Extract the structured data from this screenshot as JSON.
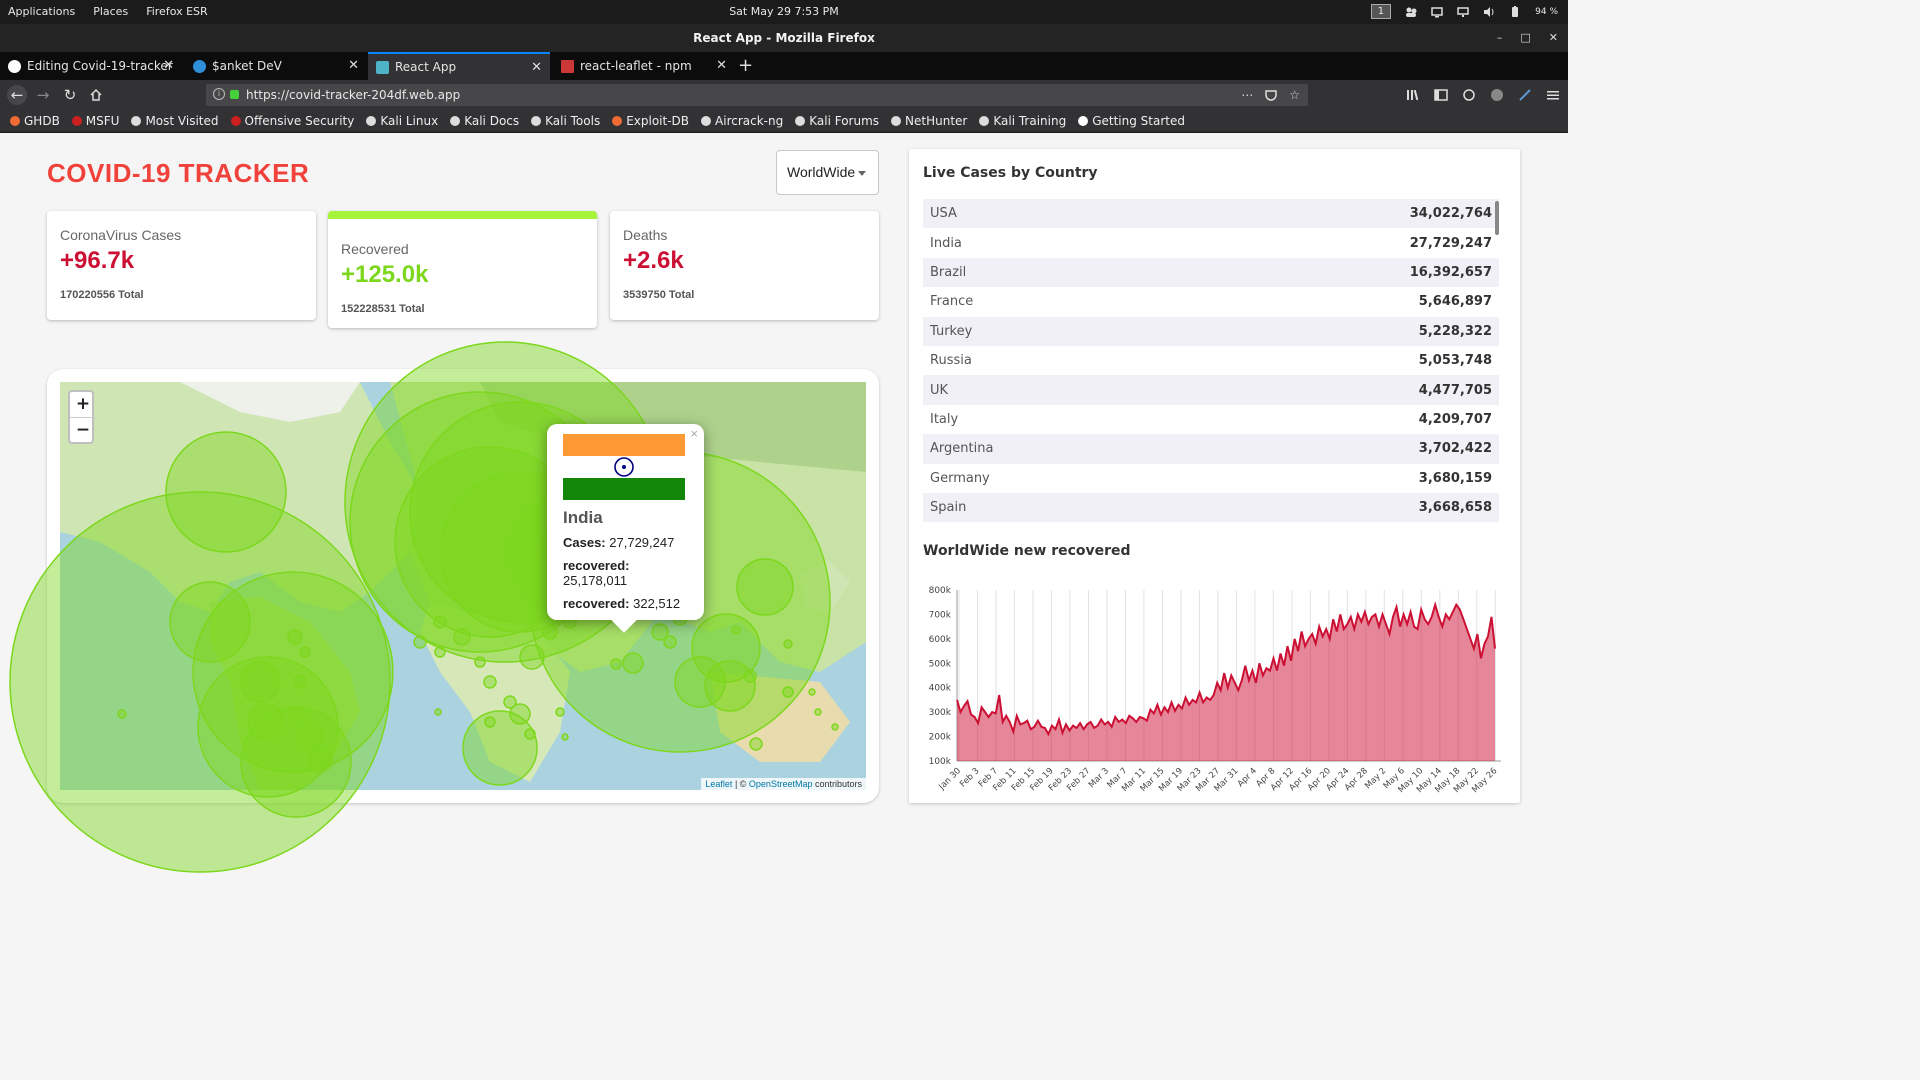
{
  "os": {
    "menus": [
      "Applications",
      "Places",
      "Firefox ESR"
    ],
    "clock": "Sat May 29   7:53 PM",
    "workspace": "1",
    "battery": "94 %"
  },
  "window": {
    "title": "React App - Mozilla Firefox",
    "min": "–",
    "max": "□",
    "close": "✕"
  },
  "tabs": [
    {
      "label": "Editing Covid-19-tracker",
      "fav_color": "#ffffff"
    },
    {
      "label": "$anket DeV",
      "fav_color": "#2f8fd8"
    },
    {
      "label": "React App",
      "fav_color": "#4fb3c8"
    },
    {
      "label": "react-leaflet - npm",
      "fav_color": "#cb3837"
    }
  ],
  "nav": {
    "url": "https://covid-tracker-204df.web.app",
    "url_actions": "⋯"
  },
  "bookmarks": [
    {
      "label": "GHDB",
      "color": "#f06a35"
    },
    {
      "label": "MSFU",
      "color": "#cc1f1f"
    },
    {
      "label": "Most Visited",
      "color": "#dddddd"
    },
    {
      "label": "Offensive Security",
      "color": "#cc1f1f"
    },
    {
      "label": "Kali Linux",
      "color": "#dddddd"
    },
    {
      "label": "Kali Docs",
      "color": "#dddddd"
    },
    {
      "label": "Kali Tools",
      "color": "#dddddd"
    },
    {
      "label": "Exploit-DB",
      "color": "#f06a35"
    },
    {
      "label": "Aircrack-ng",
      "color": "#dddddd"
    },
    {
      "label": "Kali Forums",
      "color": "#dddddd"
    },
    {
      "label": "NetHunter",
      "color": "#dddddd"
    },
    {
      "label": "Kali Training",
      "color": "#dddddd"
    },
    {
      "label": "Getting Started",
      "color": "#ffffff"
    }
  ],
  "app": {
    "title": "COVID-19 TRACKER",
    "select_value": "WorldWide",
    "cards": [
      {
        "title": "CoronaVirus Cases",
        "value": "+96.7k",
        "total": "170220556 Total"
      },
      {
        "title": "Recovered",
        "value": "+125.0k",
        "total": "152228531 Total"
      },
      {
        "title": "Deaths",
        "value": "+2.6k",
        "total": "3539750 Total"
      }
    ],
    "map": {
      "zoom_in": "+",
      "zoom_out": "−",
      "attribution_leaflet": "Leaflet",
      "attribution_sep": " | © ",
      "attribution_osm": "OpenStreetMap",
      "attribution_rest": " contributors",
      "popup": {
        "close": "×",
        "country": "India",
        "cases_label": "Cases:",
        "cases_value": "27,729,247",
        "recovered_label": "recovered:",
        "recovered_value": "25,178,011",
        "recovered2_label": "recovered:",
        "recovered2_value": "322,512"
      }
    },
    "live_title": "Live Cases by Country",
    "countries": [
      {
        "name": "USA",
        "cases": "34,022,764"
      },
      {
        "name": "India",
        "cases": "27,729,247"
      },
      {
        "name": "Brazil",
        "cases": "16,392,657"
      },
      {
        "name": "France",
        "cases": "5,646,897"
      },
      {
        "name": "Turkey",
        "cases": "5,228,322"
      },
      {
        "name": "Russia",
        "cases": "5,053,748"
      },
      {
        "name": "UK",
        "cases": "4,477,705"
      },
      {
        "name": "Italy",
        "cases": "4,209,707"
      },
      {
        "name": "Argentina",
        "cases": "3,702,422"
      },
      {
        "name": "Germany",
        "cases": "3,680,159"
      },
      {
        "name": "Spain",
        "cases": "3,668,658"
      }
    ],
    "chart_title": "WorldWide new recovered"
  },
  "chart_data": {
    "type": "area",
    "title": "WorldWide new recovered",
    "ylim": [
      100000,
      800000
    ],
    "y_ticks": [
      "100k",
      "200k",
      "300k",
      "400k",
      "500k",
      "600k",
      "700k",
      "800k"
    ],
    "x_ticks": [
      "Jan 30",
      "Feb 3",
      "Feb 7",
      "Feb 11",
      "Feb 15",
      "Feb 19",
      "Feb 23",
      "Feb 27",
      "Mar 3",
      "Mar 7",
      "Mar 11",
      "Mar 15",
      "Mar 19",
      "Mar 23",
      "Mar 27",
      "Mar 31",
      "Apr 4",
      "Apr 8",
      "Apr 12",
      "Apr 16",
      "Apr 20",
      "Apr 24",
      "Apr 28",
      "May 2",
      "May 6",
      "May 10",
      "May 14",
      "May 18",
      "May 22",
      "May 26"
    ],
    "values": [
      350000,
      300000,
      325000,
      345000,
      290000,
      280000,
      255000,
      320000,
      300000,
      280000,
      300000,
      295000,
      370000,
      260000,
      285000,
      260000,
      220000,
      285000,
      250000,
      255000,
      265000,
      230000,
      240000,
      265000,
      240000,
      235000,
      210000,
      245000,
      230000,
      270000,
      215000,
      250000,
      225000,
      245000,
      235000,
      255000,
      230000,
      250000,
      260000,
      235000,
      245000,
      270000,
      250000,
      260000,
      240000,
      280000,
      260000,
      270000,
      255000,
      285000,
      275000,
      260000,
      280000,
      275000,
      265000,
      310000,
      295000,
      330000,
      290000,
      320000,
      300000,
      340000,
      305000,
      330000,
      315000,
      360000,
      330000,
      350000,
      340000,
      380000,
      340000,
      360000,
      350000,
      370000,
      420000,
      390000,
      460000,
      400000,
      450000,
      420000,
      390000,
      430000,
      490000,
      430000,
      470000,
      420000,
      500000,
      450000,
      480000,
      470000,
      520000,
      470000,
      540000,
      490000,
      570000,
      510000,
      600000,
      550000,
      630000,
      570000,
      600000,
      620000,
      580000,
      650000,
      610000,
      640000,
      600000,
      680000,
      630000,
      700000,
      640000,
      660000,
      690000,
      640000,
      700000,
      670000,
      710000,
      660000,
      690000,
      700000,
      650000,
      700000,
      660000,
      620000,
      690000,
      730000,
      650000,
      700000,
      660000,
      710000,
      650000,
      640000,
      720000,
      680000,
      660000,
      690000,
      740000,
      690000,
      650000,
      700000,
      680000,
      710000,
      740000,
      720000,
      680000,
      640000,
      600000,
      560000,
      620000,
      520000,
      580000,
      610000,
      690000,
      560000
    ]
  }
}
